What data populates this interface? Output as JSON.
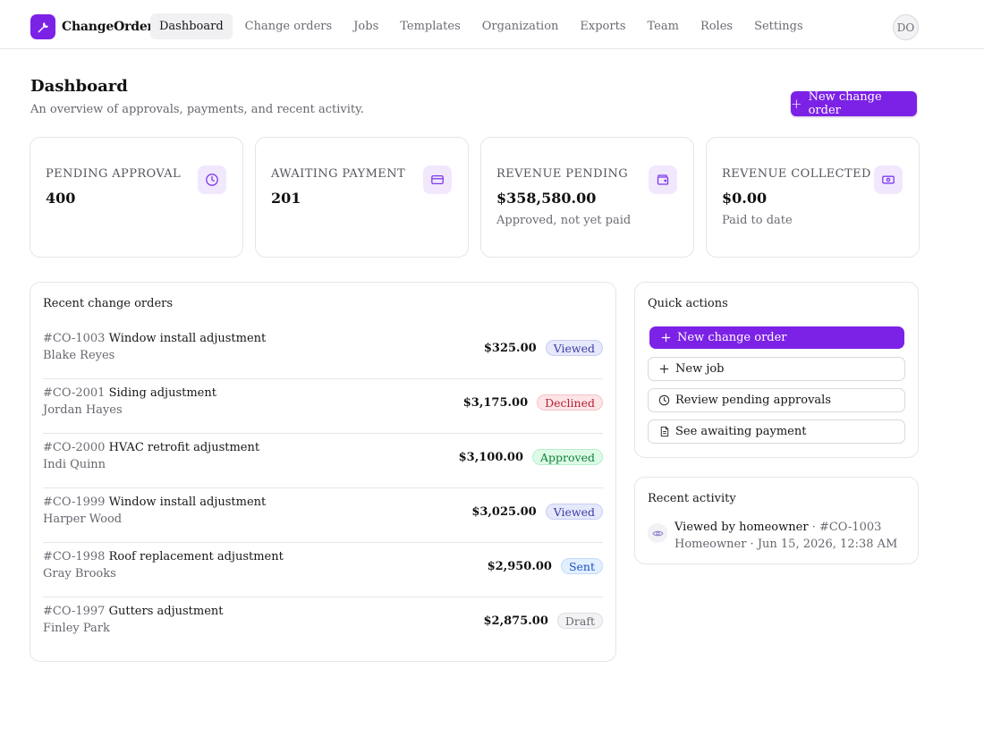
{
  "app": {
    "name": "ChangeOrder",
    "user_initials": "DO",
    "accent": "#7c22e6"
  },
  "nav": [
    {
      "label": "Dashboard",
      "active": true
    },
    {
      "label": "Change orders"
    },
    {
      "label": "Jobs"
    },
    {
      "label": "Templates"
    },
    {
      "label": "Organization"
    },
    {
      "label": "Exports"
    },
    {
      "label": "Team"
    },
    {
      "label": "Roles"
    },
    {
      "label": "Settings"
    }
  ],
  "header": {
    "title": "Dashboard",
    "subtitle": "An overview of approvals, payments, and recent activity.",
    "primary_button": "New change order"
  },
  "stats": [
    {
      "label": "PENDING APPROVAL",
      "value": "400",
      "note": "",
      "icon": "clock-icon"
    },
    {
      "label": "AWAITING PAYMENT",
      "value": "201",
      "note": "",
      "icon": "credit-card-icon"
    },
    {
      "label": "REVENUE PENDING",
      "value": "$358,580.00",
      "note": "Approved, not yet paid",
      "icon": "wallet-icon"
    },
    {
      "label": "REVENUE COLLECTED",
      "value": "$0.00",
      "note": "Paid to date",
      "icon": "banknote-icon"
    }
  ],
  "recent_orders": {
    "title": "Recent change orders",
    "rows": [
      {
        "number": "#CO-1003",
        "title": "Window install adjustment",
        "client": "Blake Reyes",
        "amount": "$325.00",
        "status": "Viewed"
      },
      {
        "number": "#CO-2001",
        "title": "Siding adjustment",
        "client": "Jordan Hayes",
        "amount": "$3,175.00",
        "status": "Declined"
      },
      {
        "number": "#CO-2000",
        "title": "HVAC retrofit adjustment",
        "client": "Indi Quinn",
        "amount": "$3,100.00",
        "status": "Approved"
      },
      {
        "number": "#CO-1999",
        "title": "Window install adjustment",
        "client": "Harper Wood",
        "amount": "$3,025.00",
        "status": "Viewed"
      },
      {
        "number": "#CO-1998",
        "title": "Roof replacement adjustment",
        "client": "Gray Brooks",
        "amount": "$2,950.00",
        "status": "Sent"
      },
      {
        "number": "#CO-1997",
        "title": "Gutters adjustment",
        "client": "Finley Park",
        "amount": "$2,875.00",
        "status": "Draft"
      }
    ]
  },
  "quick_actions": {
    "title": "Quick actions",
    "items": [
      {
        "label": "New change order",
        "icon": "plus-icon"
      },
      {
        "label": "New job",
        "icon": "plus-icon"
      },
      {
        "label": "Review pending approvals",
        "icon": "clock-icon"
      },
      {
        "label": "See awaiting payment",
        "icon": "document-icon"
      }
    ]
  },
  "activity": {
    "title": "Recent activity",
    "items": [
      {
        "event": "Viewed by homeowner",
        "ref": "#CO-1003",
        "meta": "Homeowner · Jun 15, 2026, 12:38 AM",
        "icon": "eye-icon"
      }
    ]
  }
}
